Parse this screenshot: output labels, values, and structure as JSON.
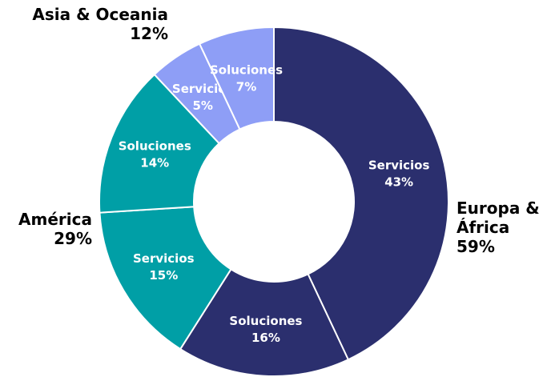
{
  "chart_data": {
    "type": "donut",
    "groups": [
      {
        "name": "Europa & África",
        "label": "59%",
        "color": "#2b2f6e",
        "categories": [
          "Servicios",
          "Soluciones"
        ],
        "values": [
          43,
          16
        ],
        "value_labels": [
          "43%",
          "16%"
        ]
      },
      {
        "name": "América",
        "label": "29%",
        "color": "#009fa6",
        "categories": [
          "Servicios",
          "Soluciones"
        ],
        "values": [
          15,
          14
        ],
        "value_labels": [
          "15%",
          "14%"
        ]
      },
      {
        "name": "Asia & Oceania",
        "label": "12%",
        "color": "#8e9ef6",
        "categories": [
          "Servicios",
          "Soluciones"
        ],
        "values": [
          5,
          7
        ],
        "value_labels": [
          "5%",
          "7%"
        ]
      }
    ]
  }
}
